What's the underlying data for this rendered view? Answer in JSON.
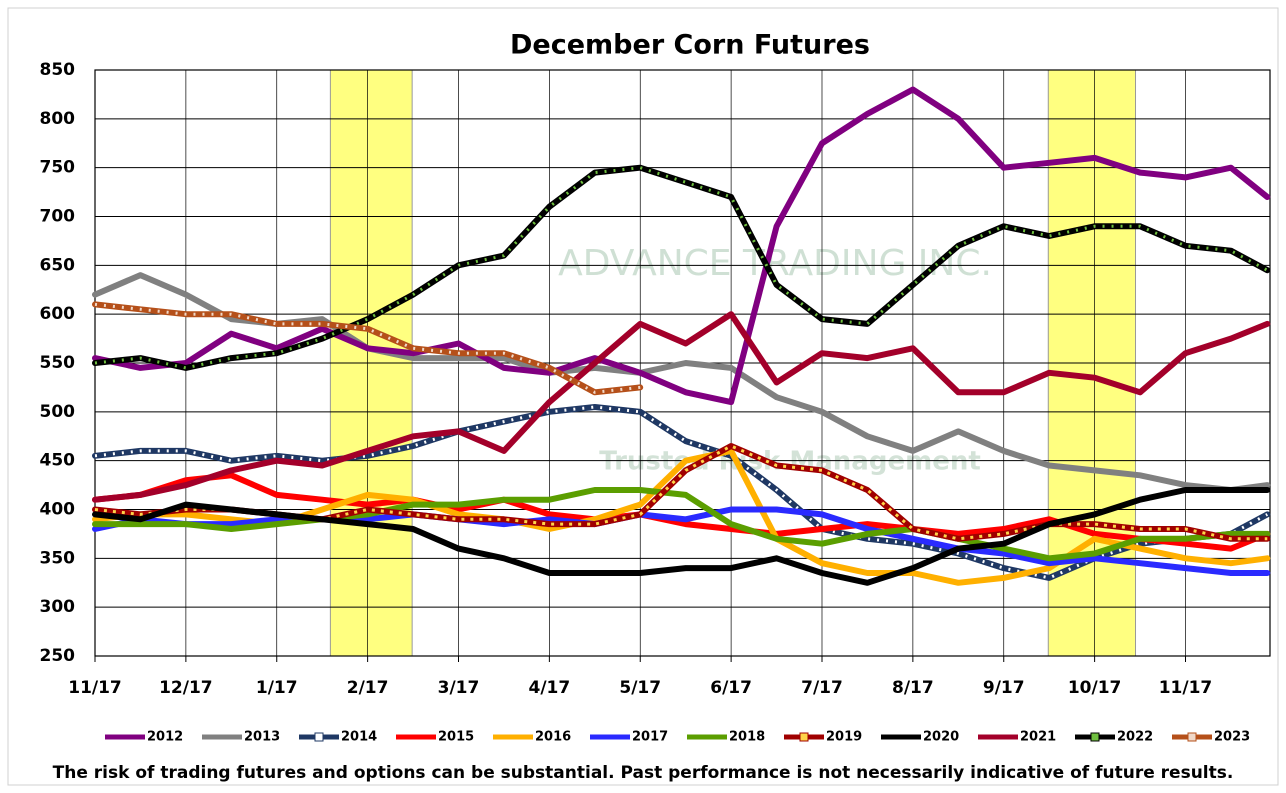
{
  "chart_data": {
    "type": "line",
    "title": "December Corn Futures",
    "footnote": "The risk of trading futures and options can be substantial.  Past performance is not necessarily indicative of future results.",
    "watermark": [
      "ADVANCE TRADING INC.",
      "Trusted Risk Management"
    ],
    "xlim": [
      0,
      12.93
    ],
    "xticks": [
      {
        "value": 0,
        "label": "11/17"
      },
      {
        "value": 1,
        "label": "12/17"
      },
      {
        "value": 2,
        "label": "1/17"
      },
      {
        "value": 3,
        "label": "2/17"
      },
      {
        "value": 4,
        "label": "3/17"
      },
      {
        "value": 5,
        "label": "4/17"
      },
      {
        "value": 6,
        "label": "5/17"
      },
      {
        "value": 7,
        "label": "6/17"
      },
      {
        "value": 8,
        "label": "7/17"
      },
      {
        "value": 9,
        "label": "8/17"
      },
      {
        "value": 10,
        "label": "9/17"
      },
      {
        "value": 11,
        "label": "10/17"
      },
      {
        "value": 12,
        "label": "11/17"
      }
    ],
    "ylim": [
      250,
      850
    ],
    "yticks": [
      250,
      300,
      350,
      400,
      450,
      500,
      550,
      600,
      650,
      700,
      750,
      800,
      850
    ],
    "grid": true,
    "legend": "bottom",
    "highlight_color": "#ffff80",
    "highlight_ranges": [
      [
        2.59,
        3.49
      ],
      [
        10.49,
        11.45
      ]
    ],
    "x": [
      0,
      0.5,
      1,
      1.5,
      2,
      2.5,
      3,
      3.5,
      4,
      4.5,
      5,
      5.5,
      6,
      6.5,
      7,
      7.5,
      8,
      8.5,
      9,
      9.5,
      10,
      10.5,
      11,
      11.5,
      12,
      12.5,
      12.9
    ],
    "series": [
      {
        "name": "2013",
        "color": "#808080",
        "values": [
          620,
          640,
          620,
          595,
          590,
          595,
          565,
          555,
          555,
          555,
          540,
          545,
          540,
          550,
          545,
          515,
          500,
          475,
          460,
          480,
          460,
          445,
          440,
          435,
          425,
          420,
          425
        ]
      },
      {
        "name": "2012",
        "color": "#800080",
        "values": [
          555,
          545,
          550,
          580,
          565,
          585,
          565,
          560,
          570,
          545,
          540,
          555,
          540,
          520,
          510,
          690,
          775,
          805,
          830,
          800,
          750,
          755,
          760,
          745,
          740,
          750,
          720
        ]
      },
      {
        "name": "2014",
        "color": "#1f3864",
        "marker": "triangle",
        "marker_color": "#ffffff",
        "values": [
          455,
          460,
          460,
          450,
          455,
          450,
          455,
          465,
          480,
          490,
          500,
          505,
          500,
          470,
          455,
          420,
          380,
          370,
          365,
          355,
          340,
          330,
          350,
          365,
          370,
          375,
          395
        ]
      },
      {
        "name": "2015",
        "color": "#ff0000",
        "values": [
          410,
          415,
          430,
          435,
          415,
          410,
          405,
          410,
          400,
          410,
          395,
          390,
          395,
          385,
          380,
          375,
          380,
          385,
          380,
          375,
          380,
          390,
          375,
          370,
          365,
          360,
          375
        ]
      },
      {
        "name": "2016",
        "color": "#ffb000",
        "values": [
          390,
          395,
          395,
          390,
          385,
          400,
          415,
          410,
          395,
          390,
          380,
          390,
          405,
          450,
          460,
          370,
          345,
          335,
          335,
          325,
          330,
          340,
          370,
          360,
          350,
          345,
          350
        ]
      },
      {
        "name": "2017",
        "color": "#2a2aff",
        "values": [
          380,
          390,
          385,
          385,
          390,
          390,
          390,
          395,
          390,
          385,
          390,
          385,
          395,
          390,
          400,
          400,
          395,
          380,
          370,
          360,
          355,
          345,
          350,
          345,
          340,
          335,
          335
        ]
      },
      {
        "name": "2018",
        "color": "#5b9e00",
        "values": [
          385,
          385,
          385,
          380,
          385,
          390,
          395,
          405,
          405,
          410,
          410,
          420,
          420,
          415,
          385,
          370,
          365,
          375,
          380,
          370,
          360,
          350,
          355,
          370,
          370,
          375,
          375
        ]
      },
      {
        "name": "2019",
        "color": "#a00000",
        "marker": "square",
        "marker_color": "#ffd54a",
        "values": [
          400,
          395,
          400,
          400,
          395,
          390,
          400,
          395,
          390,
          390,
          385,
          385,
          395,
          440,
          465,
          445,
          440,
          420,
          380,
          370,
          375,
          385,
          385,
          380,
          380,
          370,
          370
        ]
      },
      {
        "name": "2020",
        "color": "#000000",
        "values": [
          395,
          390,
          405,
          400,
          395,
          390,
          385,
          380,
          360,
          350,
          335,
          335,
          335,
          340,
          340,
          350,
          335,
          325,
          340,
          360,
          365,
          385,
          395,
          410,
          420,
          420,
          420
        ]
      },
      {
        "name": "2021",
        "color": "#a3002a",
        "values": [
          410,
          415,
          425,
          440,
          450,
          445,
          460,
          475,
          480,
          460,
          510,
          550,
          590,
          570,
          600,
          530,
          560,
          555,
          565,
          520,
          520,
          540,
          535,
          520,
          560,
          575,
          590
        ]
      },
      {
        "name": "2022",
        "color": "#000000",
        "marker": "triangle",
        "marker_color": "#70c040",
        "values": [
          550,
          555,
          545,
          555,
          560,
          575,
          595,
          620,
          650,
          660,
          710,
          745,
          750,
          735,
          720,
          630,
          595,
          590,
          630,
          670,
          690,
          680,
          690,
          690,
          670,
          665,
          645
        ]
      },
      {
        "name": "2023",
        "color": "#b5501a",
        "marker": "triangle",
        "marker_color": "#f0d8c8",
        "values": [
          610,
          605,
          600,
          600,
          590,
          590,
          585,
          565,
          560,
          560,
          545,
          520,
          525,
          null,
          null,
          null,
          null,
          null,
          null,
          null,
          null,
          null,
          null,
          null,
          null,
          null,
          null
        ]
      }
    ]
  }
}
